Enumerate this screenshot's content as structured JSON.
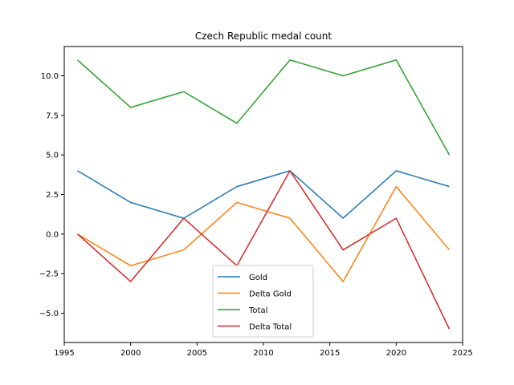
{
  "chart_data": {
    "type": "line",
    "title": "Czech Republic medal count",
    "xlabel": "",
    "ylabel": "",
    "x": [
      1996,
      2000,
      2004,
      2008,
      2012,
      2016,
      2020,
      2024
    ],
    "xlim": [
      1995,
      2025
    ],
    "ylim": [
      -6.85,
      11.85
    ],
    "xticks": [
      1995,
      2000,
      2005,
      2010,
      2015,
      2020,
      2025
    ],
    "yticks": [
      -5.0,
      -2.5,
      0.0,
      2.5,
      5.0,
      7.5,
      10.0
    ],
    "xtick_labels": [
      "1995",
      "2000",
      "2005",
      "2010",
      "2015",
      "2020",
      "2025"
    ],
    "ytick_labels": [
      "−5.0",
      "−2.5",
      "0.0",
      "2.5",
      "5.0",
      "7.5",
      "10.0"
    ],
    "grid": false,
    "legend_position": "lower-center",
    "series": [
      {
        "name": "Gold",
        "color": "#1f77b4",
        "values": [
          4,
          2,
          1,
          3,
          4,
          1,
          4,
          3
        ]
      },
      {
        "name": "Delta Gold",
        "color": "#ff7f0e",
        "values": [
          0,
          -2,
          -1,
          2,
          1,
          -3,
          3,
          -1
        ]
      },
      {
        "name": "Total",
        "color": "#2ca02c",
        "values": [
          11,
          8,
          9,
          7,
          11,
          10,
          11,
          5
        ]
      },
      {
        "name": "Delta Total",
        "color": "#d62728",
        "values": [
          0,
          -3,
          1,
          -2,
          4,
          -1,
          1,
          -6
        ]
      }
    ]
  }
}
